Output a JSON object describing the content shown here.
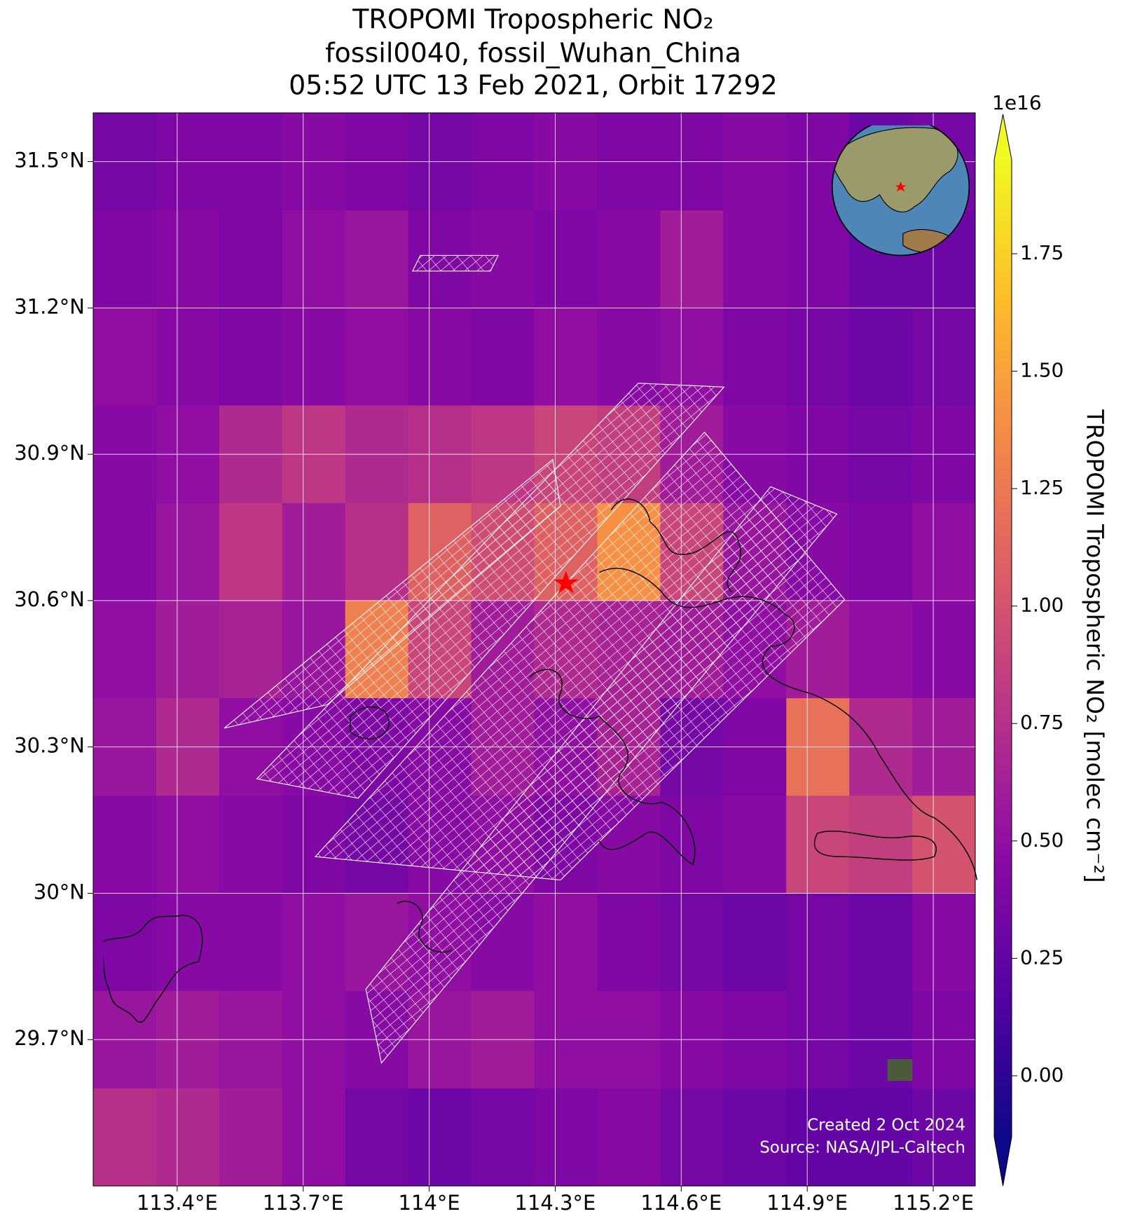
{
  "chart_data": {
    "type": "heatmap",
    "title": [
      "TROPOMI Tropospheric NO₂",
      "fossil0040, fossil_Wuhan_China",
      "05:52 UTC 13 Feb 2021, Orbit 17292"
    ],
    "xlim": [
      113.2,
      115.3
    ],
    "ylim": [
      29.4,
      31.6
    ],
    "xticks": [
      {
        "value": 113.4,
        "label": "113.4°E"
      },
      {
        "value": 113.7,
        "label": "113.7°E"
      },
      {
        "value": 114,
        "label": "114°E"
      },
      {
        "value": 114.3,
        "label": "114.3°E"
      },
      {
        "value": 114.6,
        "label": "114.6°E"
      },
      {
        "value": 114.9,
        "label": "114.9°E"
      },
      {
        "value": 115.2,
        "label": "115.2°E"
      }
    ],
    "yticks": [
      {
        "value": 29.7,
        "label": "29.7°N"
      },
      {
        "value": 30,
        "label": "30°N"
      },
      {
        "value": 30.3,
        "label": "30.3°N"
      },
      {
        "value": 30.6,
        "label": "30.6°N"
      },
      {
        "value": 30.9,
        "label": "30.9°N"
      },
      {
        "value": 31.2,
        "label": "31.2°N"
      },
      {
        "value": 31.5,
        "label": "31.5°N"
      }
    ],
    "grid": true,
    "values": [
      [
        0.35,
        0.4,
        0.4,
        0.45,
        0.4,
        0.35,
        0.4,
        0.45,
        0.4,
        0.4,
        0.45,
        0.4,
        0.3,
        0.35
      ],
      [
        0.4,
        0.45,
        0.4,
        0.5,
        0.55,
        0.4,
        0.45,
        0.4,
        0.45,
        0.6,
        0.45,
        0.4,
        0.3,
        0.3
      ],
      [
        0.5,
        0.45,
        0.4,
        0.45,
        0.5,
        0.45,
        0.4,
        0.5,
        0.45,
        0.5,
        0.4,
        0.35,
        0.3,
        0.35
      ],
      [
        0.45,
        0.5,
        0.7,
        0.8,
        0.7,
        0.75,
        0.8,
        0.9,
        0.85,
        0.6,
        0.45,
        0.4,
        0.35,
        0.4
      ],
      [
        0.45,
        0.55,
        0.8,
        0.6,
        0.75,
        1.1,
        0.95,
        1.1,
        1.4,
        0.9,
        0.55,
        0.45,
        0.4,
        0.5
      ],
      [
        0.5,
        0.6,
        0.65,
        0.55,
        1.3,
        0.9,
        0.6,
        0.7,
        0.65,
        0.6,
        0.5,
        0.6,
        0.5,
        0.45
      ],
      [
        0.55,
        0.7,
        0.5,
        0.45,
        0.4,
        0.45,
        0.6,
        0.5,
        0.65,
        0.35,
        0.4,
        1.2,
        0.7,
        0.6
      ],
      [
        0.45,
        0.5,
        0.45,
        0.4,
        0.35,
        0.45,
        0.5,
        0.4,
        0.45,
        0.4,
        0.45,
        0.9,
        0.85,
        1.0
      ],
      [
        0.4,
        0.45,
        0.45,
        0.5,
        0.55,
        0.5,
        0.45,
        0.5,
        0.4,
        0.35,
        0.3,
        0.35,
        0.3,
        0.45
      ],
      [
        0.55,
        0.6,
        0.55,
        0.5,
        0.45,
        0.55,
        0.6,
        0.5,
        0.5,
        0.45,
        0.4,
        0.35,
        0.3,
        0.4
      ],
      [
        0.75,
        0.7,
        0.6,
        0.5,
        0.35,
        0.3,
        0.35,
        0.4,
        0.45,
        0.35,
        0.3,
        0.25,
        0.25,
        0.3
      ]
    ],
    "colormap": [
      "#0d0887",
      "#5302a3",
      "#8b0aa5",
      "#b83289",
      "#db5c68",
      "#f48849",
      "#febd2a",
      "#f0f921"
    ],
    "colorbar_lim": [
      -0.13,
      1.95
    ],
    "colorbar_ticks": [
      {
        "value": 0,
        "label": "0.00"
      },
      0.25,
      {
        "value": 0.5,
        "label": "0.50"
      },
      0.75,
      {
        "value": 1,
        "label": "1.00"
      },
      1.25,
      {
        "value": 1.5,
        "label": "1.50"
      },
      1.75
    ],
    "colorbar_offset": "1e16",
    "colorbar_label": "TROPOMI Tropospheric NO₂ [molec cm⁻²]",
    "notes": [
      "Created 2 Oct 2024",
      "Source: NASA/JPL-Caltech"
    ]
  }
}
